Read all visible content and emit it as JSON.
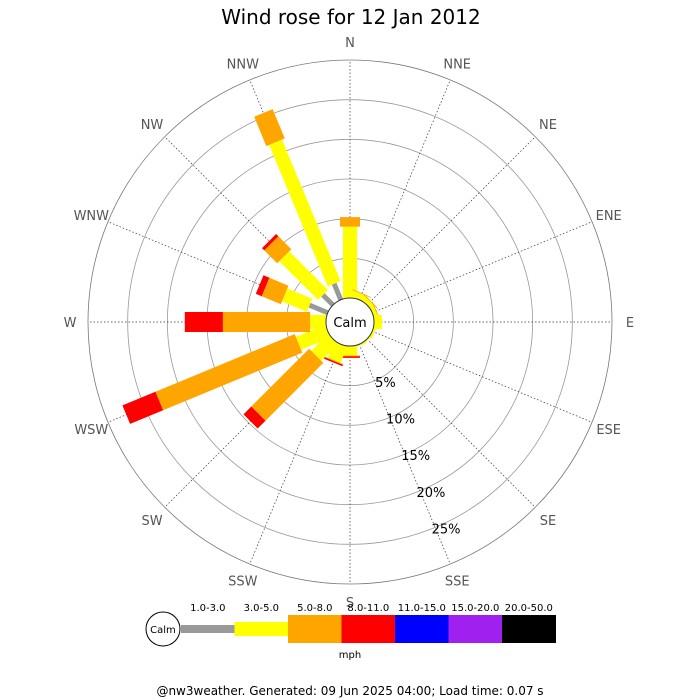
{
  "chart_data": {
    "type": "wind-rose",
    "title": "Wind rose for 12 Jan 2012",
    "directions": [
      "N",
      "NNE",
      "NE",
      "ENE",
      "E",
      "ESE",
      "SE",
      "SSE",
      "S",
      "SSW",
      "SW",
      "WSW",
      "W",
      "WNW",
      "NW",
      "NNW"
    ],
    "radial_tick_labels": [
      "5%",
      "10%",
      "15%",
      "20%",
      "25%"
    ],
    "radial_ticks": [
      5,
      10,
      15,
      20,
      25
    ],
    "radial_max": 30,
    "calm_label": "Calm",
    "units_label": "mph",
    "speed_bins": [
      {
        "label": "1.0-3.0",
        "color": "#999999"
      },
      {
        "label": "3.0-5.0",
        "color": "#ffff00"
      },
      {
        "label": "5.0-8.0",
        "color": "#ffa500"
      },
      {
        "label": "8.0-11.0",
        "color": "#ff0000"
      },
      {
        "label": "11.0-15.0",
        "color": "#0000ff"
      },
      {
        "label": "15.0-20.0",
        "color": "#a020f0"
      },
      {
        "label": "20.0-50.0",
        "color": "#000000"
      }
    ],
    "cumulative_percent": {
      "N": [
        0,
        9.0,
        10.2,
        10.2,
        10.2,
        10.2,
        10.2
      ],
      "NNE": [
        0,
        0.8,
        0.9,
        0.9,
        0.9,
        0.9,
        0.9
      ],
      "NE": [
        0,
        0.6,
        0.7,
        0.7,
        0.7,
        0.7,
        0.7
      ],
      "ENE": [
        0,
        0.5,
        0.6,
        0.6,
        0.6,
        0.6,
        0.6
      ],
      "E": [
        0,
        1.0,
        1.0,
        1.0,
        1.0,
        1.0,
        1.0
      ],
      "ESE": [
        0,
        0.3,
        0.3,
        0.3,
        0.3,
        0.3,
        0.3
      ],
      "SE": [
        0,
        0.2,
        0.2,
        0.2,
        0.2,
        0.2,
        0.2
      ],
      "SSE": [
        0,
        0.2,
        0.2,
        0.2,
        0.2,
        0.2,
        0.2
      ],
      "S": [
        0,
        1.2,
        1.3,
        1.5,
        1.5,
        1.5,
        1.5
      ],
      "SSW": [
        0,
        2.2,
        2.3,
        2.5,
        2.5,
        2.5,
        2.5
      ],
      "SW": [
        0,
        3.0,
        13.3,
        14.7,
        14.7,
        14.7,
        14.7
      ],
      "WSW": [
        0,
        4.0,
        23.0,
        27.5,
        27.5,
        27.5,
        27.5
      ],
      "W": [
        0,
        2.0,
        13.0,
        17.8,
        17.8,
        17.8,
        17.8
      ],
      "WNW": [
        2.5,
        5.9,
        8.5,
        9.3,
        9.3,
        9.3,
        9.3
      ],
      "NW": [
        1.8,
        8.7,
        11.0,
        11.4,
        11.4,
        11.4,
        11.4
      ],
      "NNW": [
        2.2,
        21.5,
        25.5,
        25.5,
        25.5,
        25.5,
        25.5
      ]
    }
  },
  "footer": "@nw3weather. Generated: 09 Jun 2025 04:00; Load time: 0.07 s"
}
